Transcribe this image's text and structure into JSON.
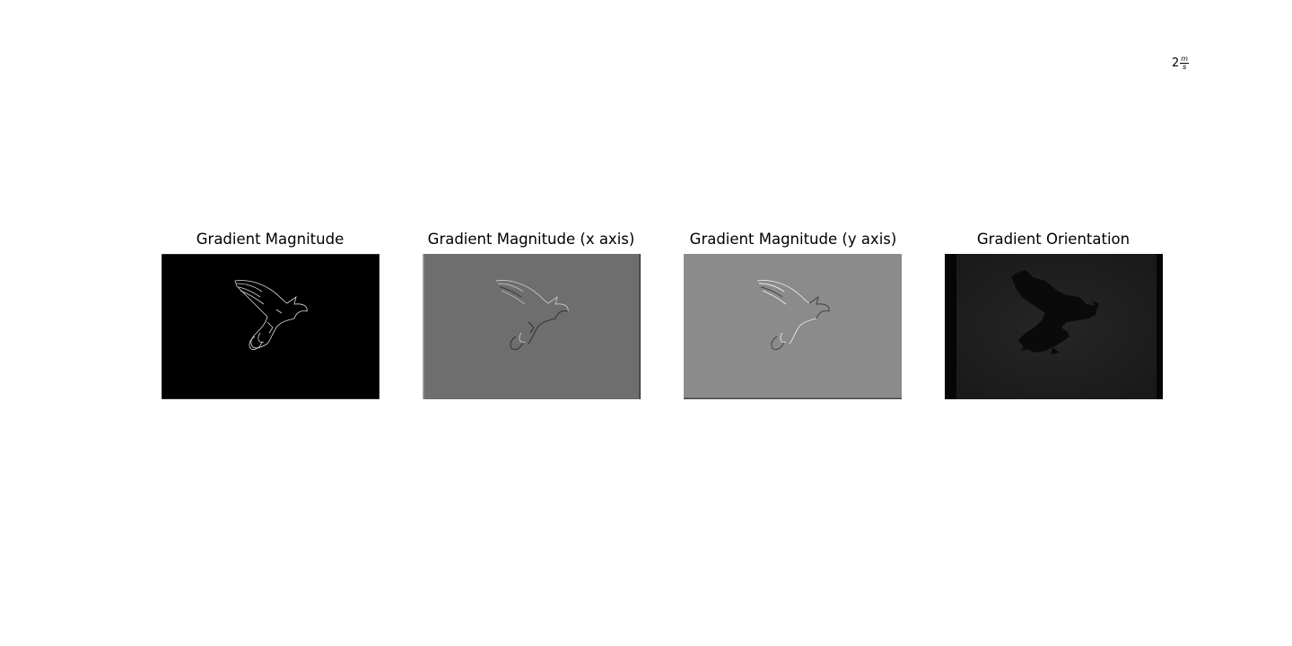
{
  "annotation": {
    "prefix": "2",
    "numerator": "m",
    "denominator": "s"
  },
  "panels": [
    {
      "title": "Gradient Magnitude",
      "background": "#000000",
      "edge": "#d9d9d9"
    },
    {
      "title": "Gradient Magnitude (x axis)",
      "background": "#6e6e6e",
      "edge": "#c8c8c8"
    },
    {
      "title": "Gradient Magnitude (y axis)",
      "background": "#8b8b8b",
      "edge": "#e6e6e6"
    },
    {
      "title": "Gradient Orientation",
      "background": "#1e1e1e",
      "edge": "#0a0a0a"
    }
  ]
}
